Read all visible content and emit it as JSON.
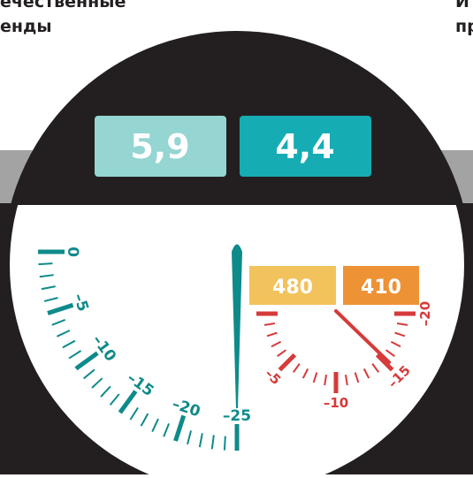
{
  "header": {
    "left_line1": "ечественные",
    "left_line2": "енды",
    "right_line1": "И",
    "right_line2": "пр"
  },
  "boxes": [
    "5,9",
    "4,4"
  ],
  "teal_gauge": {
    "labels": [
      "0",
      "–5",
      "–10",
      "–15",
      "–20",
      "–25"
    ]
  },
  "red_gauge": {
    "boxes": [
      "480",
      "410"
    ],
    "labels": [
      "–5",
      "–10",
      "–15",
      "–20"
    ]
  }
}
